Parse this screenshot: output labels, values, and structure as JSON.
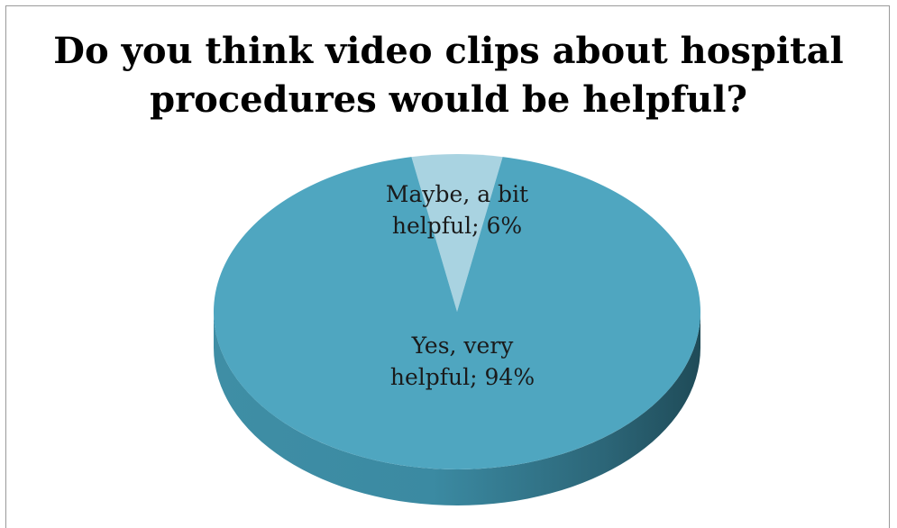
{
  "chart_data": {
    "type": "pie",
    "title_lines": [
      "Do you think video clips about hospital",
      "procedures would be helpful?"
    ],
    "slices": [
      {
        "label_lines": [
          "Yes, very",
          "helpful; 94%"
        ],
        "category": "Yes, very helpful",
        "value": 94,
        "color": "#4fa6c0"
      },
      {
        "label_lines": [
          "Maybe, a bit",
          "helpful; 6%"
        ],
        "category": "Maybe, a bit helpful",
        "value": 6,
        "color": "#a9d3e1"
      }
    ],
    "style": "3d",
    "legend": "none",
    "side_color_dark": "#234f5d",
    "side_color_light": "#3f8ea5"
  }
}
